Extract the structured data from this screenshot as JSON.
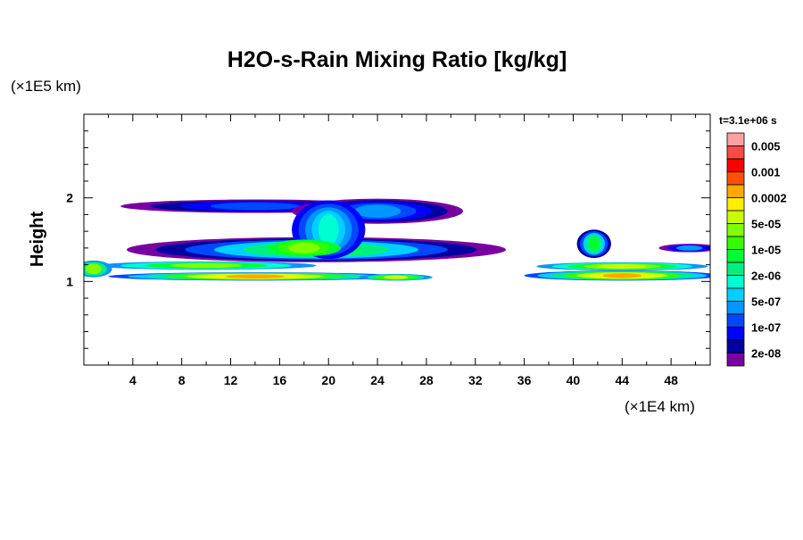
{
  "chart_data": {
    "type": "heatmap",
    "title": "H2O-s-Rain Mixing Ratio [kg/kg]",
    "ylabel": "Height",
    "y_unit": "(×1E5 km)",
    "x_unit": "(×1E4 km)",
    "time_label": "t=3.1e+06 s",
    "xlim": [
      0,
      51.2
    ],
    "ylim": [
      0,
      3
    ],
    "x_ticks": [
      4,
      8,
      12,
      16,
      20,
      24,
      28,
      32,
      36,
      40,
      44,
      48
    ],
    "x_tick_labels": [
      "4",
      "8",
      "12",
      "16",
      "20",
      "24",
      "28",
      "32",
      "36",
      "40",
      "44",
      "48"
    ],
    "y_ticks": [
      1,
      2
    ],
    "y_tick_labels": [
      "1",
      "2"
    ],
    "y_minor_step": 0.2,
    "x_minor_step": 2,
    "colorbar": {
      "colors_top_to_bottom": [
        "#ffa0a0",
        "#ff4848",
        "#ff0000",
        "#ff5000",
        "#ffa800",
        "#ffee00",
        "#c8ff00",
        "#80ff00",
        "#30ff00",
        "#00ff30",
        "#00f080",
        "#00ffd0",
        "#00d0ff",
        "#0096ff",
        "#0048ff",
        "#0000ff",
        "#0000a0",
        "#7800a0"
      ],
      "labels": [
        "0.005",
        "0.001",
        "0.0002",
        "5e-05",
        "1e-05",
        "2e-06",
        "5e-07",
        "1e-07",
        "2e-08"
      ]
    },
    "field_blobs": [
      {
        "cx": 14,
        "cy": 1.9,
        "rx": 11,
        "ry": 0.08,
        "layers": [
          0,
          1,
          2,
          3
        ]
      },
      {
        "cx": 24,
        "cy": 1.84,
        "rx": 7,
        "ry": 0.15,
        "layers": [
          0,
          1,
          2,
          3,
          4
        ]
      },
      {
        "cx": 19,
        "cy": 1.38,
        "rx": 15.5,
        "ry": 0.15,
        "layers": [
          0,
          1,
          3,
          5,
          7,
          8
        ]
      },
      {
        "cx": 20,
        "cy": 1.62,
        "rx": 3,
        "ry": 0.35,
        "layers": [
          2,
          3,
          4,
          5,
          6
        ]
      },
      {
        "cx": 18,
        "cy": 1.4,
        "rx": 3,
        "ry": 0.1,
        "layers": [
          8,
          9,
          10
        ]
      },
      {
        "cx": 10,
        "cy": 1.19,
        "rx": 9,
        "ry": 0.05,
        "layers": [
          4,
          6,
          8,
          10
        ]
      },
      {
        "cx": 14,
        "cy": 1.06,
        "rx": 12,
        "ry": 0.05,
        "layers": [
          3,
          5,
          7,
          9,
          11,
          12,
          13
        ]
      },
      {
        "cx": 25.5,
        "cy": 1.05,
        "rx": 3,
        "ry": 0.04,
        "layers": [
          4,
          7,
          9,
          11
        ]
      },
      {
        "cx": 44,
        "cy": 1.18,
        "rx": 7,
        "ry": 0.05,
        "layers": [
          4,
          6,
          8,
          10,
          11
        ]
      },
      {
        "cx": 44,
        "cy": 1.07,
        "rx": 8,
        "ry": 0.06,
        "layers": [
          3,
          5,
          7,
          9,
          11,
          12,
          13
        ]
      },
      {
        "cx": 41.7,
        "cy": 1.45,
        "rx": 1.4,
        "ry": 0.17,
        "layers": [
          1,
          3,
          5,
          7,
          8
        ]
      },
      {
        "cx": 49.5,
        "cy": 1.4,
        "rx": 2.5,
        "ry": 0.05,
        "layers": [
          0,
          2,
          4
        ]
      },
      {
        "cx": 0.8,
        "cy": 1.15,
        "rx": 1.5,
        "ry": 0.1,
        "layers": [
          4,
          7,
          10
        ]
      }
    ]
  }
}
